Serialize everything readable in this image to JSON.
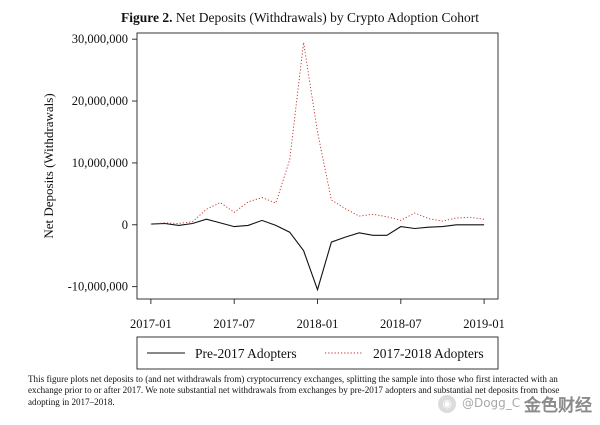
{
  "figure": {
    "label": "Figure 2.",
    "title_text": "Net Deposits (Withdrawals) by Crypto Adoption Cohort"
  },
  "chart_data": {
    "type": "line",
    "title": "Figure 2. Net Deposits (Withdrawals) by Crypto Adoption Cohort",
    "xlabel": "",
    "ylabel": "Net Deposits (Withdrawals)",
    "x_unit": "month index from 2017-01",
    "xlim": [
      -1,
      25
    ],
    "ylim": [
      -12000000,
      31000000
    ],
    "xticks": [
      {
        "value": 0,
        "label": "2017-01"
      },
      {
        "value": 6,
        "label": "2017-07"
      },
      {
        "value": 12,
        "label": "2018-01"
      },
      {
        "value": 18,
        "label": "2018-07"
      },
      {
        "value": 24,
        "label": "2019-01"
      }
    ],
    "yticks": [
      {
        "value": -10000000,
        "label": "-10,000,000"
      },
      {
        "value": 0,
        "label": "0"
      },
      {
        "value": 10000000,
        "label": "10,000,000"
      },
      {
        "value": 20000000,
        "label": "20,000,000"
      },
      {
        "value": 30000000,
        "label": "30,000,000"
      }
    ],
    "x": [
      0,
      1,
      2,
      3,
      4,
      5,
      6,
      7,
      8,
      9,
      10,
      11,
      12,
      13,
      14,
      15,
      16,
      17,
      18,
      19,
      20,
      21,
      22,
      23,
      24
    ],
    "series": [
      {
        "name": "Pre-2017 Adopters",
        "style": "solid",
        "color": "#111111",
        "values": [
          100000,
          200000,
          -100000,
          200000,
          900000,
          300000,
          -300000,
          -100000,
          700000,
          -100000,
          -1200000,
          -4200000,
          -10500000,
          -2800000,
          -2000000,
          -1300000,
          -1700000,
          -1700000,
          -300000,
          -600000,
          -400000,
          -300000,
          0,
          0,
          0
        ]
      },
      {
        "name": "2017-2018 Adopters",
        "style": "dotted",
        "color": "#c62828",
        "values": [
          100000,
          300000,
          200000,
          500000,
          2500000,
          3600000,
          2000000,
          3700000,
          4400000,
          3500000,
          10500000,
          29500000,
          15000000,
          4000000,
          2600000,
          1400000,
          1700000,
          1300000,
          700000,
          1900000,
          1000000,
          600000,
          1100000,
          1200000,
          900000
        ]
      }
    ],
    "legend_position": "bottom"
  },
  "note": {
    "text": "This figure plots net deposits to (and net withdrawals from) cryptocurrency exchanges, splitting the sample into those who first interacted with an exchange prior to or after 2017. We note substantial net withdrawals from exchanges by pre-2017 adopters and substantial net deposits from those adopting in 2017–2018."
  },
  "watermark": {
    "handle": "@Dogg_C",
    "brand": "金色财经"
  }
}
